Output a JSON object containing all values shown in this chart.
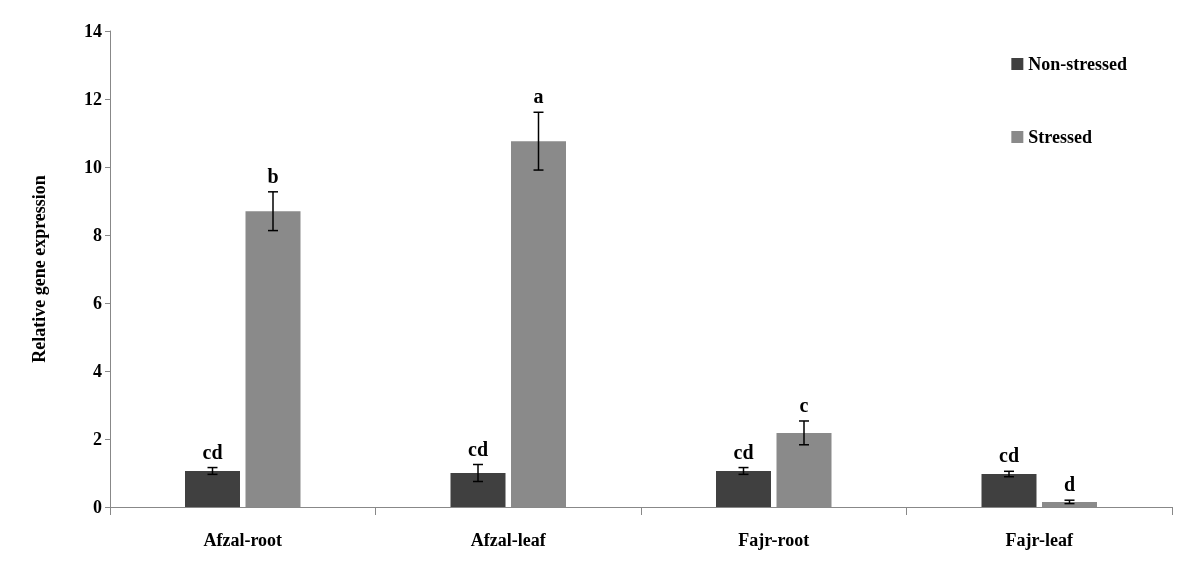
{
  "chart_data": {
    "type": "bar",
    "ylabel": "Relative gene expression",
    "categories": [
      "Afzal-root",
      "Afzal-leaf",
      "Fajr-root",
      "Fajr-leaf"
    ],
    "series": [
      {
        "name": "Non-stressed",
        "color": "#404040",
        "values": [
          1.06,
          1.0,
          1.06,
          0.97
        ],
        "errors": [
          0.1,
          0.25,
          0.1,
          0.08
        ],
        "value_labels": [
          "cd",
          "cd",
          "cd",
          "cd"
        ]
      },
      {
        "name": "Stressed",
        "color": "#8a8a8a",
        "values": [
          8.7,
          10.76,
          2.18,
          0.15
        ],
        "errors": [
          0.57,
          0.85,
          0.35,
          0.05
        ],
        "value_labels": [
          "b",
          "a",
          "c",
          "d"
        ]
      }
    ],
    "ylim": [
      0,
      14
    ],
    "yticks": [
      0,
      2,
      4,
      6,
      8,
      10,
      12,
      14
    ],
    "grid": false,
    "legend": "top right"
  }
}
